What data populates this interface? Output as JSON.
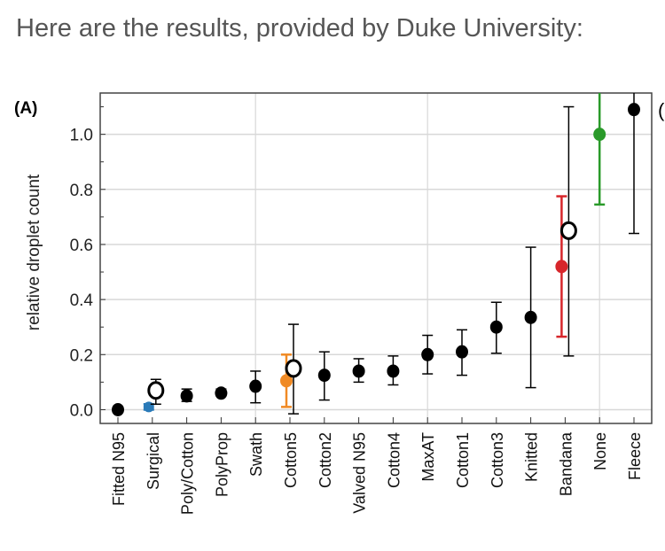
{
  "heading": "Here are the results, provided by Duke University:",
  "chart_data": {
    "type": "scatter",
    "panel_label": "(A)",
    "next_panel_label_partial": "(",
    "xlabel": "",
    "ylabel": "relative droplet count",
    "ylim": [
      -0.05,
      1.15
    ],
    "yticks": [
      0.0,
      0.2,
      0.4,
      0.6,
      0.8,
      1.0
    ],
    "ytick_labels": [
      "0.0",
      "0.2",
      "0.4",
      "0.6",
      "0.8",
      "1.0"
    ],
    "grid": true,
    "categories": [
      "Fitted N95",
      "Surgical",
      "Poly/Cotton",
      "PolyProp",
      "Swath",
      "Cotton5",
      "Cotton2",
      "Valved N95",
      "Cotton4",
      "MaxAT",
      "Cotton1",
      "Cotton3",
      "Knitted",
      "Bandana",
      "None",
      "Fleece"
    ],
    "vertical_gridlines_at": [
      "Swath",
      "MaxAT",
      "None"
    ],
    "points": [
      {
        "cat": "Fitted N95",
        "value": 0.0,
        "lo": 0.0,
        "hi": 0.0,
        "color": "#000000",
        "style": "filled"
      },
      {
        "cat": "Surgical",
        "value": 0.01,
        "lo": 0.0,
        "hi": 0.02,
        "color": "#2a7ab8",
        "style": "filled",
        "offset": "left"
      },
      {
        "cat": "Surgical",
        "value": 0.07,
        "lo": 0.02,
        "hi": 0.11,
        "color": "#000000",
        "style": "open",
        "offset": "right"
      },
      {
        "cat": "Poly/Cotton",
        "value": 0.05,
        "lo": 0.03,
        "hi": 0.075,
        "color": "#000000",
        "style": "filled"
      },
      {
        "cat": "PolyProp",
        "value": 0.06,
        "lo": 0.05,
        "hi": 0.075,
        "color": "#000000",
        "style": "filled"
      },
      {
        "cat": "Swath",
        "value": 0.085,
        "lo": 0.025,
        "hi": 0.14,
        "color": "#000000",
        "style": "filled"
      },
      {
        "cat": "Cotton5",
        "value": 0.105,
        "lo": 0.01,
        "hi": 0.2,
        "color": "#f08a24",
        "style": "filled",
        "offset": "left"
      },
      {
        "cat": "Cotton5",
        "value": 0.15,
        "lo": -0.015,
        "hi": 0.31,
        "color": "#000000",
        "style": "open",
        "offset": "right"
      },
      {
        "cat": "Cotton2",
        "value": 0.125,
        "lo": 0.035,
        "hi": 0.21,
        "color": "#000000",
        "style": "filled"
      },
      {
        "cat": "Valved N95",
        "value": 0.14,
        "lo": 0.1,
        "hi": 0.185,
        "color": "#000000",
        "style": "filled"
      },
      {
        "cat": "Cotton4",
        "value": 0.14,
        "lo": 0.09,
        "hi": 0.195,
        "color": "#000000",
        "style": "filled"
      },
      {
        "cat": "MaxAT",
        "value": 0.2,
        "lo": 0.13,
        "hi": 0.27,
        "color": "#000000",
        "style": "filled"
      },
      {
        "cat": "Cotton1",
        "value": 0.21,
        "lo": 0.125,
        "hi": 0.29,
        "color": "#000000",
        "style": "filled"
      },
      {
        "cat": "Cotton3",
        "value": 0.3,
        "lo": 0.205,
        "hi": 0.39,
        "color": "#000000",
        "style": "filled"
      },
      {
        "cat": "Knitted",
        "value": 0.335,
        "lo": 0.08,
        "hi": 0.59,
        "color": "#000000",
        "style": "filled"
      },
      {
        "cat": "Bandana",
        "value": 0.52,
        "lo": 0.265,
        "hi": 0.775,
        "color": "#d7262b",
        "style": "filled",
        "offset": "left"
      },
      {
        "cat": "Bandana",
        "value": 0.65,
        "lo": 0.195,
        "hi": 1.1,
        "color": "#000000",
        "style": "open",
        "offset": "right"
      },
      {
        "cat": "None",
        "value": 1.0,
        "lo": 0.745,
        "hi": 1.2,
        "color": "#2a9a2a",
        "style": "filled"
      },
      {
        "cat": "Fleece",
        "value": 1.09,
        "lo": 0.64,
        "hi": 1.2,
        "color": "#000000",
        "style": "filled"
      }
    ]
  }
}
